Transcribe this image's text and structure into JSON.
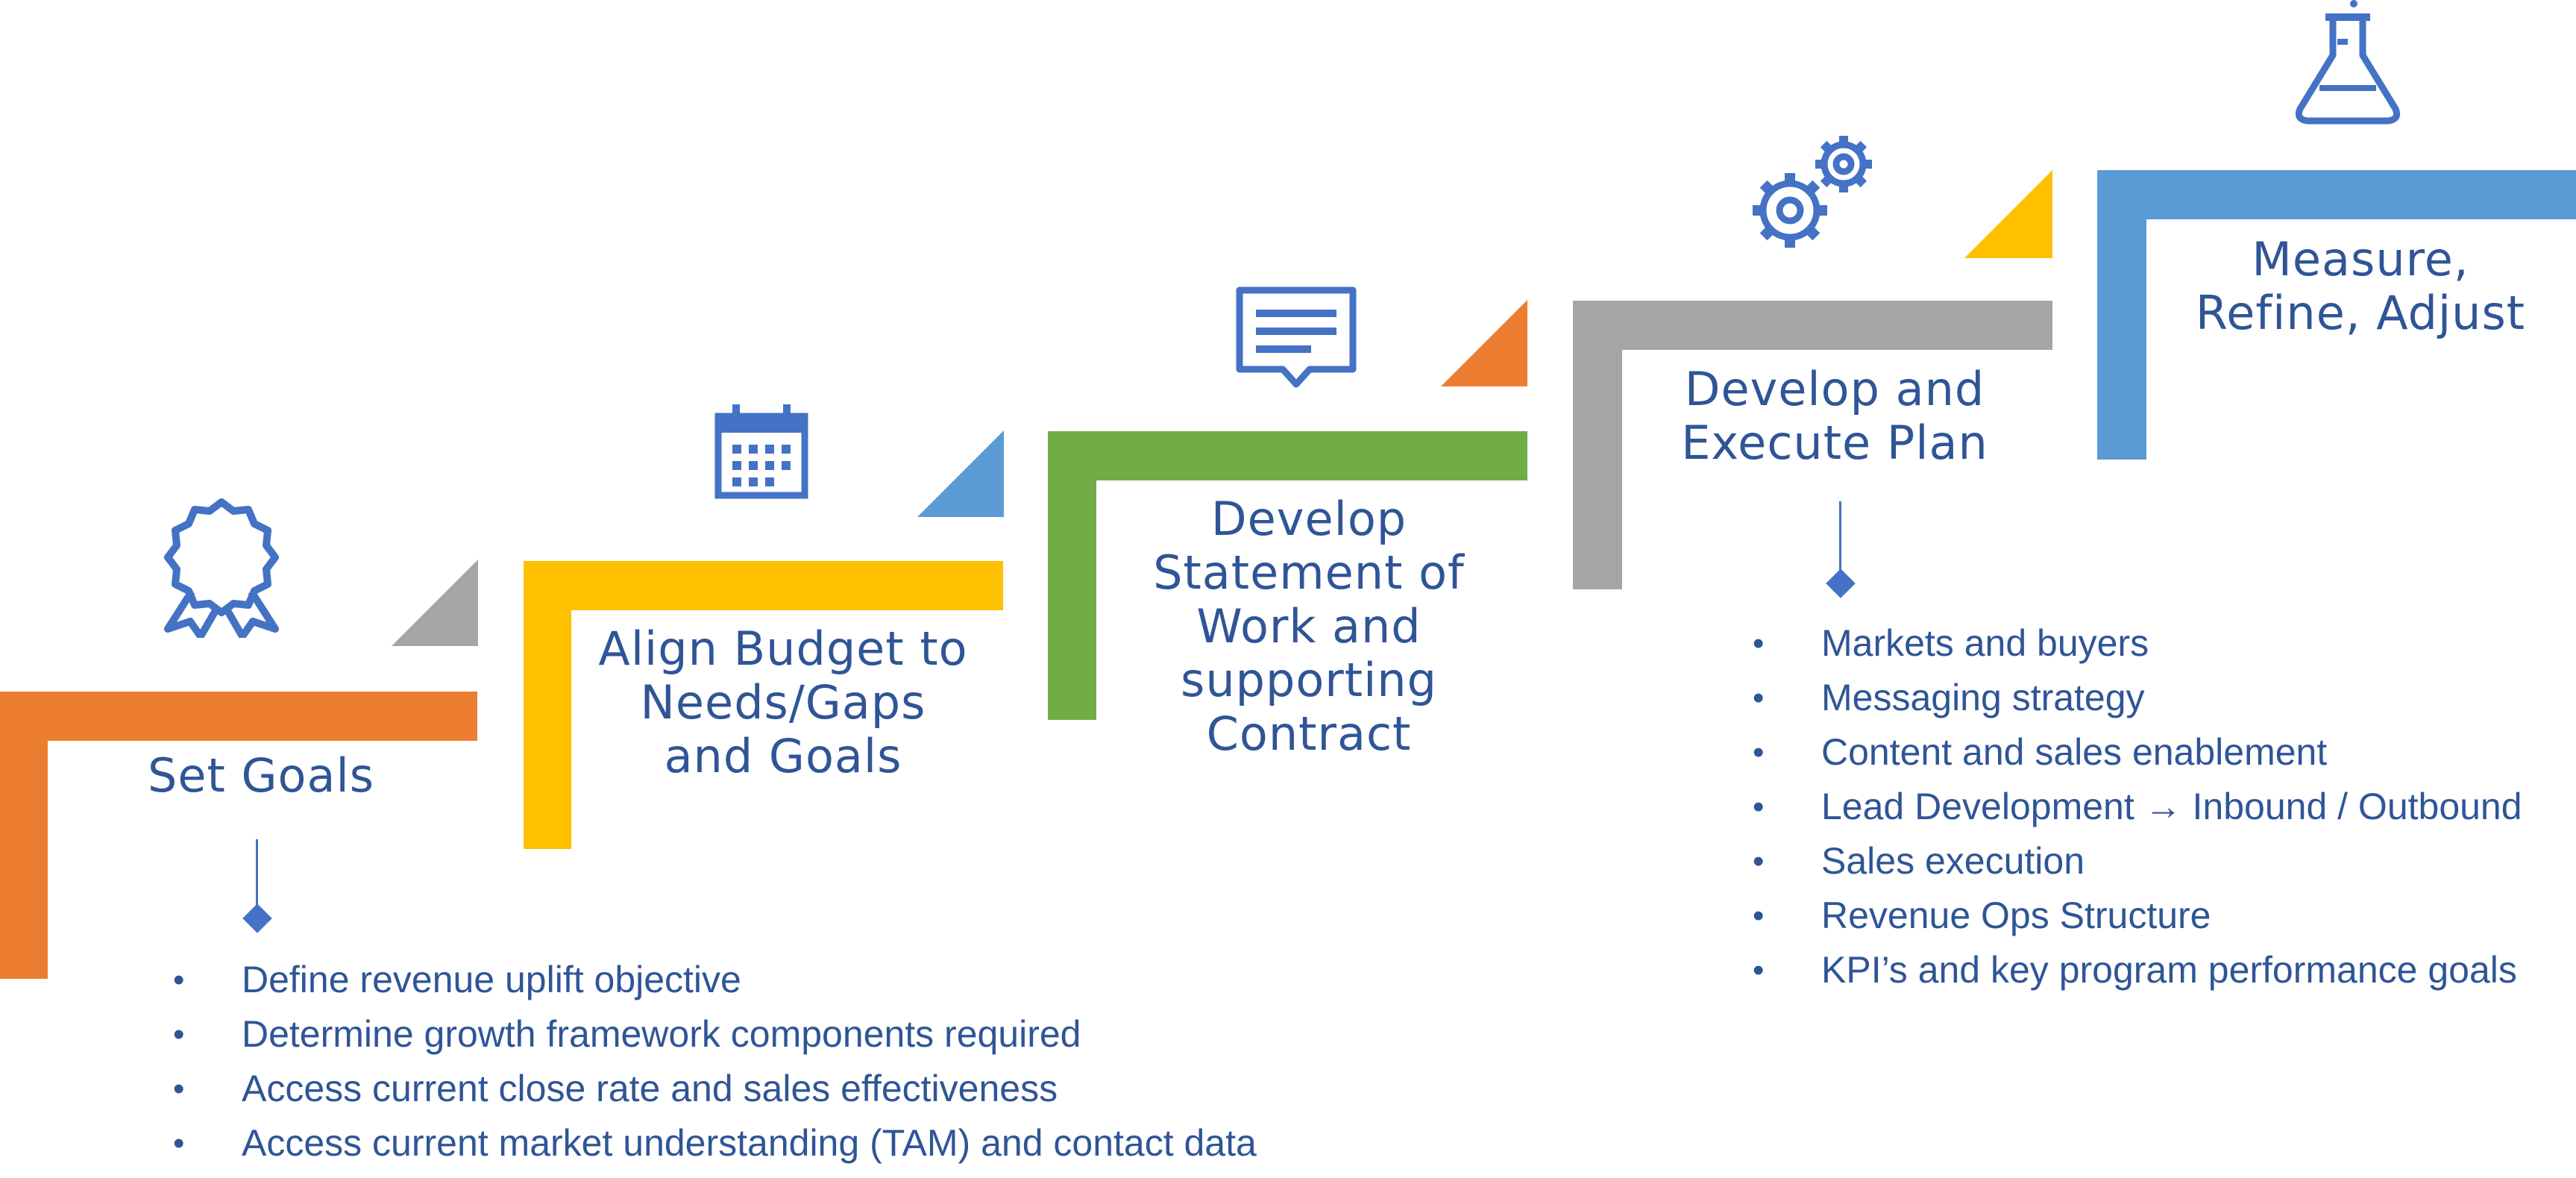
{
  "colors": {
    "orange": "#ED7D31",
    "yellow": "#FFC000",
    "green": "#70AD47",
    "gray": "#A5A5A5",
    "blue": "#5B9BD5",
    "icon_blue": "#4472C4",
    "text_blue": "#2F5597"
  },
  "steps": [
    {
      "title": [
        "Set Goals"
      ],
      "icon": "award-ribbon-icon",
      "bar_color": "orange",
      "accent_color": "gray",
      "bullets": [
        "Define revenue uplift objective",
        "Determine growth framework components required",
        "Access current close rate and sales effectiveness",
        "Access current market understanding (TAM) and contact data"
      ]
    },
    {
      "title": [
        "Align Budget to",
        "Needs/Gaps",
        "and Goals"
      ],
      "icon": "calendar-icon",
      "bar_color": "yellow",
      "accent_color": "blue"
    },
    {
      "title": [
        "Develop",
        "Statement of",
        "Work and",
        "supporting",
        "Contract"
      ],
      "icon": "document-speech-icon",
      "bar_color": "green",
      "accent_color": "orange"
    },
    {
      "title": [
        "Develop and",
        "Execute Plan"
      ],
      "icon": "gears-icon",
      "bar_color": "gray",
      "accent_color": "yellow",
      "bullets": [
        "Markets and buyers",
        "Messaging strategy",
        "Content and sales enablement",
        "Lead Development → Inbound / Outbound",
        "Sales execution",
        "Revenue Ops Structure",
        "KPI’s and key program performance goals"
      ]
    },
    {
      "title": [
        "Measure,",
        "Refine, Adjust"
      ],
      "icon": "flask-icon",
      "bar_color": "blue"
    }
  ]
}
